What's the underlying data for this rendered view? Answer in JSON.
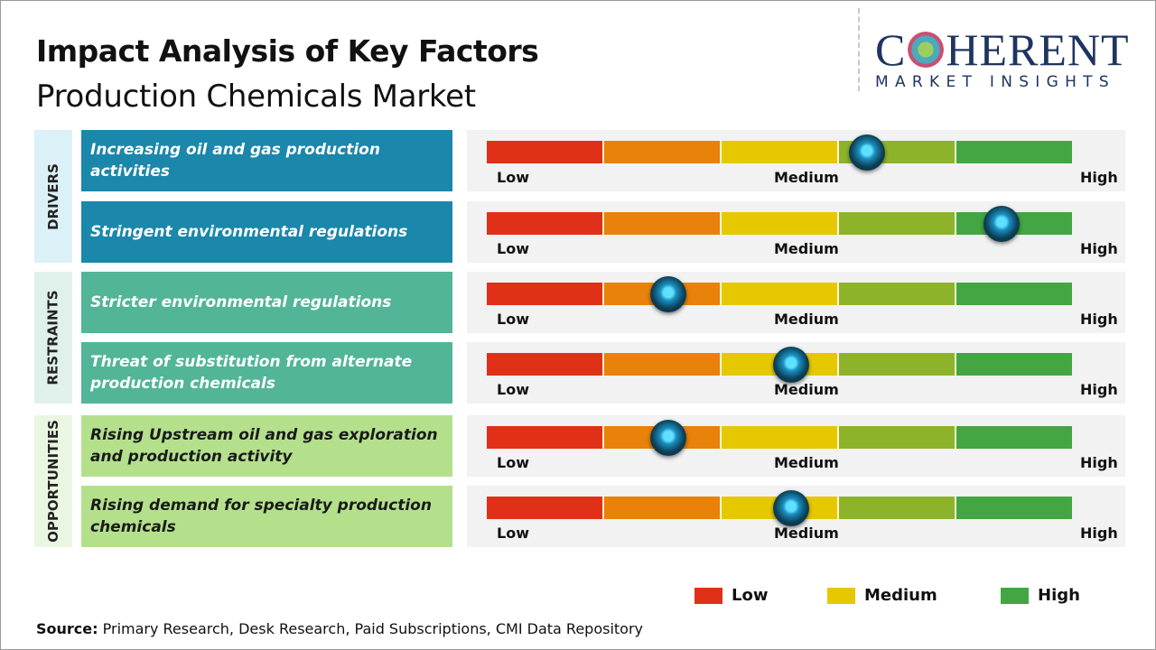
{
  "header": {
    "title": "Impact Analysis of Key Factors",
    "subtitle": "Production Chemicals Market"
  },
  "logo": {
    "main": "COHERENT",
    "sub": "MARKET INSIGHTS"
  },
  "colors": {
    "low": "#e03018",
    "low_medium": "#e8820a",
    "medium": "#e6c800",
    "medium_high": "#8db32a",
    "high": "#44a642",
    "drivers": "#1a87ab",
    "restraints": "#52b597",
    "opportunities": "#b4e08c"
  },
  "scale_labels": {
    "low": "Low",
    "medium": "Medium",
    "high": "High"
  },
  "groups": [
    {
      "name": "DRIVERS",
      "bg": "#dcf0f8",
      "factors": [
        {
          "label": "Increasing oil and gas production activities",
          "impact": 0.65
        },
        {
          "label": "Stringent environmental regulations",
          "impact": 0.88
        }
      ]
    },
    {
      "name": "RESTRAINTS",
      "bg": "#e0f1ec",
      "factors": [
        {
          "label": "Stricter environmental regulations",
          "impact": 0.31
        },
        {
          "label": "Threat of substitution from alternate production chemicals",
          "impact": 0.52
        }
      ]
    },
    {
      "name": "OPPORTUNITIES",
      "bg": "#eaf6e0",
      "factors": [
        {
          "label": "Rising Upstream oil and gas exploration and production activity",
          "impact": 0.31
        },
        {
          "label": "Rising demand for specialty production chemicals",
          "impact": 0.52
        }
      ]
    }
  ],
  "legend": [
    {
      "label": "Low",
      "color": "#e03018"
    },
    {
      "label": "Medium",
      "color": "#e6c800"
    },
    {
      "label": "High",
      "color": "#44a642"
    }
  ],
  "source": {
    "prefix": "Source:",
    "text": " Primary Research, Desk Research, Paid Subscriptions, CMI Data Repository"
  }
}
